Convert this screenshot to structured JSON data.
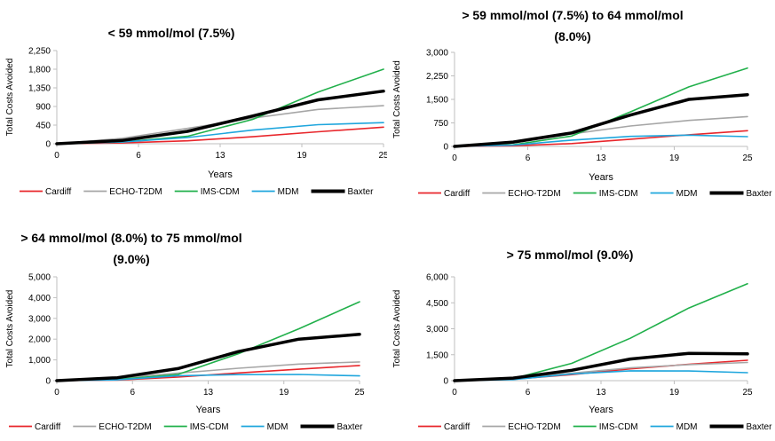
{
  "colors": {
    "Cardiff": "#e8262b",
    "ECHO-T2DM": "#a6a6a6",
    "IMS-CDM": "#21b04b",
    "MDM": "#1fa6dd",
    "Baxter": "#000000",
    "axis": "#bfbfbf"
  },
  "chart_data": [
    {
      "type": "line",
      "title": "< 59 mmol/mol (7.5%)",
      "xlabel": "Years",
      "ylabel": "Total Costs Avoided",
      "xlim": [
        0,
        25
      ],
      "ylim": [
        0,
        2250
      ],
      "x_ticks": [
        "0",
        "6",
        "13",
        "19",
        "25"
      ],
      "y_ticks": [
        "0",
        "450",
        "900",
        "1,350",
        "1,800",
        "2,250"
      ],
      "x": [
        0,
        5,
        10,
        15,
        20,
        25
      ],
      "series": [
        {
          "name": "Cardiff",
          "values": [
            0,
            20,
            70,
            170,
            290,
            400
          ]
        },
        {
          "name": "ECHO-T2DM",
          "values": [
            0,
            130,
            370,
            620,
            830,
            920
          ]
        },
        {
          "name": "IMS-CDM",
          "values": [
            0,
            40,
            180,
            590,
            1250,
            1800
          ]
        },
        {
          "name": "MDM",
          "values": [
            0,
            40,
            150,
            330,
            460,
            510
          ]
        },
        {
          "name": "Baxter",
          "values": [
            0,
            80,
            300,
            670,
            1060,
            1270
          ]
        }
      ],
      "grid": false,
      "legend": "bottom"
    },
    {
      "type": "line",
      "title": "> 59 mmol/mol (7.5%) to 64 mmol/mol (8.0%)",
      "xlabel": "Years",
      "ylabel": "Total Costs Avoided",
      "xlim": [
        0,
        25
      ],
      "ylim": [
        0,
        3000
      ],
      "x_ticks": [
        "0",
        "6",
        "13",
        "19",
        "25"
      ],
      "y_ticks": [
        "0",
        "750",
        "1,500",
        "2,250",
        "3,000"
      ],
      "x": [
        0,
        5,
        10,
        15,
        20,
        25
      ],
      "series": [
        {
          "name": "Cardiff",
          "values": [
            0,
            20,
            90,
            230,
            370,
            500
          ]
        },
        {
          "name": "ECHO-T2DM",
          "values": [
            0,
            110,
            400,
            650,
            830,
            950
          ]
        },
        {
          "name": "IMS-CDM",
          "values": [
            0,
            50,
            330,
            1100,
            1900,
            2500
          ]
        },
        {
          "name": "MDM",
          "values": [
            0,
            40,
            200,
            320,
            360,
            310
          ]
        },
        {
          "name": "Baxter",
          "values": [
            0,
            140,
            430,
            1000,
            1500,
            1650
          ]
        }
      ],
      "grid": false,
      "legend": "bottom"
    },
    {
      "type": "line",
      "title": "> 64 mmol/mol (8.0%) to 75 mmol/mol (9.0%)",
      "xlabel": "Years",
      "ylabel": "Total Costs Avoided",
      "xlim": [
        0,
        25
      ],
      "ylim": [
        0,
        5000
      ],
      "x_ticks": [
        "0",
        "6",
        "13",
        "19",
        "25"
      ],
      "y_ticks": [
        "0",
        "1,000",
        "2,000",
        "3,000",
        "4,000",
        "5,000"
      ],
      "x": [
        0,
        5,
        10,
        15,
        20,
        25
      ],
      "series": [
        {
          "name": "Cardiff",
          "values": [
            0,
            30,
            170,
            370,
            550,
            730
          ]
        },
        {
          "name": "ECHO-T2DM",
          "values": [
            0,
            130,
            360,
            600,
            800,
            900
          ]
        },
        {
          "name": "IMS-CDM",
          "values": [
            0,
            60,
            300,
            1300,
            2500,
            3800
          ]
        },
        {
          "name": "MDM",
          "values": [
            0,
            40,
            240,
            290,
            300,
            230
          ]
        },
        {
          "name": "Baxter",
          "values": [
            0,
            140,
            580,
            1400,
            2000,
            2230
          ]
        }
      ],
      "grid": false,
      "legend": "bottom"
    },
    {
      "type": "line",
      "title": "> 75 mmol/mol (9.0%)",
      "xlabel": "Years",
      "ylabel": "Total Costs Avoided",
      "xlim": [
        0,
        25
      ],
      "ylim": [
        0,
        6000
      ],
      "x_ticks": [
        "0",
        "6",
        "13",
        "19",
        "25"
      ],
      "y_ticks": [
        "0",
        "1,500",
        "3,000",
        "4,500",
        "6,000"
      ],
      "x": [
        0,
        5,
        10,
        15,
        20,
        25
      ],
      "series": [
        {
          "name": "Cardiff",
          "values": [
            0,
            80,
            350,
            680,
            950,
            1180
          ]
        },
        {
          "name": "ECHO-T2DM",
          "values": [
            0,
            120,
            430,
            740,
            930,
            1050
          ]
        },
        {
          "name": "IMS-CDM",
          "values": [
            0,
            120,
            1000,
            2450,
            4200,
            5600
          ]
        },
        {
          "name": "MDM",
          "values": [
            0,
            60,
            390,
            570,
            560,
            460
          ]
        },
        {
          "name": "Baxter",
          "values": [
            0,
            150,
            600,
            1250,
            1580,
            1550
          ]
        }
      ],
      "grid": false,
      "legend": "bottom"
    }
  ]
}
